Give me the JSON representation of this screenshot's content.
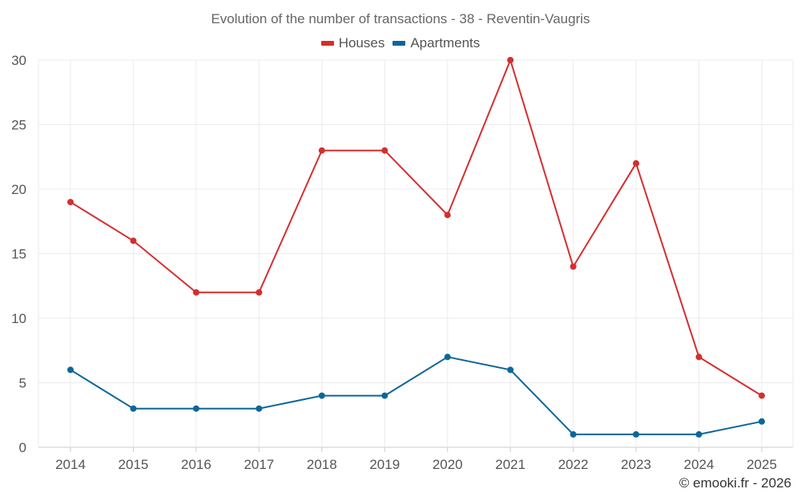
{
  "chart_data": {
    "type": "line",
    "title": "Evolution of the number of transactions - 38 - Reventin-Vaugris",
    "categories": [
      "2014",
      "2015",
      "2016",
      "2017",
      "2018",
      "2019",
      "2020",
      "2021",
      "2022",
      "2023",
      "2024",
      "2025"
    ],
    "series": [
      {
        "name": "Houses",
        "color": "#d32f2f",
        "values": [
          19,
          16,
          12,
          12,
          23,
          23,
          18,
          30,
          14,
          22,
          7,
          4
        ]
      },
      {
        "name": "Apartments",
        "color": "#0d6699",
        "values": [
          6,
          3,
          3,
          3,
          4,
          4,
          7,
          6,
          1,
          1,
          1,
          2
        ]
      }
    ],
    "ylim": [
      0,
      30
    ],
    "yticks": [
      "0",
      "5",
      "10",
      "15",
      "20",
      "25",
      "30"
    ],
    "legend_position": "top-center",
    "grid": true
  },
  "credit": "© emooki.fr - 2026"
}
